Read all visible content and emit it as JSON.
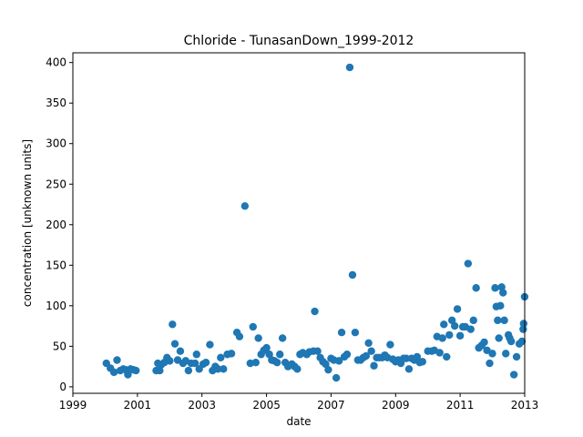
{
  "chart_data": {
    "type": "scatter",
    "title": "Chloride - TunasanDown_1999-2012",
    "xlabel": "date",
    "ylabel": "concentration [unknown units]",
    "xlim": [
      "1999-01-01",
      "2013-01-01"
    ],
    "ylim": [
      -8,
      412
    ],
    "x_ticks": [
      "1999",
      "2001",
      "2003",
      "2005",
      "2007",
      "2009",
      "2011",
      "2013"
    ],
    "y_ticks": [
      0,
      50,
      100,
      150,
      200,
      250,
      300,
      350,
      400
    ],
    "grid": false,
    "marker_color": "#1f77b4",
    "series": [
      {
        "points": [
          [
            "2000-01-15",
            29
          ],
          [
            "2000-03-01",
            23
          ],
          [
            "2000-04-10",
            18
          ],
          [
            "2000-05-15",
            33
          ],
          [
            "2000-06-20",
            20
          ],
          [
            "2000-07-25",
            22
          ],
          [
            "2000-08-20",
            21
          ],
          [
            "2000-09-15",
            15
          ],
          [
            "2000-10-15",
            22
          ],
          [
            "2000-11-15",
            21
          ],
          [
            "2000-12-15",
            20
          ],
          [
            "2001-08-01",
            20
          ],
          [
            "2001-08-20",
            29
          ],
          [
            "2001-09-10",
            20
          ],
          [
            "2001-09-25",
            27
          ],
          [
            "2001-11-01",
            30
          ],
          [
            "2001-12-01",
            36
          ],
          [
            "2002-01-01",
            32
          ],
          [
            "2002-02-01",
            77
          ],
          [
            "2002-03-01",
            53
          ],
          [
            "2002-04-01",
            33
          ],
          [
            "2002-05-01",
            44
          ],
          [
            "2002-06-01",
            29
          ],
          [
            "2002-07-01",
            32
          ],
          [
            "2002-08-01",
            20
          ],
          [
            "2002-09-01",
            29
          ],
          [
            "2002-10-15",
            29
          ],
          [
            "2002-11-01",
            40
          ],
          [
            "2002-12-01",
            22
          ],
          [
            "2003-01-15",
            28
          ],
          [
            "2003-02-15",
            30
          ],
          [
            "2003-04-01",
            52
          ],
          [
            "2003-05-01",
            20
          ],
          [
            "2003-06-01",
            25
          ],
          [
            "2003-07-01",
            22
          ],
          [
            "2003-08-01",
            36
          ],
          [
            "2003-09-01",
            22
          ],
          [
            "2003-10-15",
            40
          ],
          [
            "2003-12-01",
            41
          ],
          [
            "2004-02-01",
            67
          ],
          [
            "2004-03-01",
            62
          ],
          [
            "2004-05-01",
            223
          ],
          [
            "2004-07-01",
            29
          ],
          [
            "2004-08-01",
            74
          ],
          [
            "2004-09-01",
            30
          ],
          [
            "2004-10-01",
            60
          ],
          [
            "2004-11-01",
            40
          ],
          [
            "2004-12-01",
            45
          ],
          [
            "2005-01-01",
            48
          ],
          [
            "2005-02-01",
            40
          ],
          [
            "2005-03-01",
            33
          ],
          [
            "2005-04-01",
            32
          ],
          [
            "2005-05-01",
            30
          ],
          [
            "2005-06-01",
            40
          ],
          [
            "2005-07-01",
            60
          ],
          [
            "2005-08-01",
            30
          ],
          [
            "2005-09-01",
            25
          ],
          [
            "2005-10-15",
            28
          ],
          [
            "2005-11-15",
            25
          ],
          [
            "2005-12-15",
            22
          ],
          [
            "2006-01-15",
            40
          ],
          [
            "2006-02-15",
            42
          ],
          [
            "2006-04-01",
            40
          ],
          [
            "2006-05-01",
            43
          ],
          [
            "2006-06-15",
            44
          ],
          [
            "2006-07-01",
            93
          ],
          [
            "2006-08-01",
            44
          ],
          [
            "2006-09-01",
            36
          ],
          [
            "2006-10-01",
            31
          ],
          [
            "2006-11-01",
            28
          ],
          [
            "2006-12-01",
            21
          ],
          [
            "2007-01-01",
            35
          ],
          [
            "2007-02-01",
            33
          ],
          [
            "2007-03-01",
            11
          ],
          [
            "2007-04-01",
            32
          ],
          [
            "2007-05-01",
            67
          ],
          [
            "2007-06-01",
            37
          ],
          [
            "2007-07-01",
            40
          ],
          [
            "2007-08-01",
            394
          ],
          [
            "2007-09-01",
            138
          ],
          [
            "2007-10-01",
            67
          ],
          [
            "2007-11-01",
            33
          ],
          [
            "2007-12-01",
            33
          ],
          [
            "2008-01-01",
            36
          ],
          [
            "2008-02-01",
            38
          ],
          [
            "2008-03-01",
            54
          ],
          [
            "2008-04-01",
            44
          ],
          [
            "2008-05-01",
            26
          ],
          [
            "2008-06-01",
            36
          ],
          [
            "2008-07-01",
            36
          ],
          [
            "2008-08-01",
            36
          ],
          [
            "2008-09-01",
            39
          ],
          [
            "2008-10-01",
            36
          ],
          [
            "2008-11-01",
            52
          ],
          [
            "2008-12-01",
            34
          ],
          [
            "2009-01-01",
            31
          ],
          [
            "2009-02-01",
            33
          ],
          [
            "2009-03-01",
            29
          ],
          [
            "2009-04-01",
            35
          ],
          [
            "2009-05-01",
            35
          ],
          [
            "2009-06-01",
            22
          ],
          [
            "2009-07-01",
            35
          ],
          [
            "2009-08-01",
            33
          ],
          [
            "2009-09-01",
            37
          ],
          [
            "2009-10-01",
            30
          ],
          [
            "2009-11-01",
            31
          ],
          [
            "2010-01-01",
            44
          ],
          [
            "2010-02-15",
            44
          ],
          [
            "2010-03-15",
            45
          ],
          [
            "2010-04-15",
            62
          ],
          [
            "2010-05-15",
            42
          ],
          [
            "2010-06-15",
            60
          ],
          [
            "2010-07-01",
            77
          ],
          [
            "2010-08-01",
            37
          ],
          [
            "2010-09-01",
            64
          ],
          [
            "2010-10-01",
            82
          ],
          [
            "2010-11-01",
            75
          ],
          [
            "2010-12-01",
            96
          ],
          [
            "2011-01-01",
            63
          ],
          [
            "2011-02-01",
            74
          ],
          [
            "2011-03-01",
            74
          ],
          [
            "2011-04-01",
            152
          ],
          [
            "2011-05-01",
            71
          ],
          [
            "2011-06-01",
            82
          ],
          [
            "2011-07-01",
            122
          ],
          [
            "2011-08-01",
            48
          ],
          [
            "2011-09-01",
            51
          ],
          [
            "2011-10-01",
            55
          ],
          [
            "2011-11-01",
            45
          ],
          [
            "2011-12-01",
            29
          ],
          [
            "2012-01-01",
            41
          ],
          [
            "2012-02-01",
            122
          ],
          [
            "2012-02-15",
            99
          ],
          [
            "2012-03-01",
            82
          ],
          [
            "2012-03-15",
            60
          ],
          [
            "2012-04-01",
            100
          ],
          [
            "2012-04-15",
            123
          ],
          [
            "2012-05-01",
            116
          ],
          [
            "2012-05-15",
            82
          ],
          [
            "2012-06-01",
            41
          ],
          [
            "2012-07-01",
            64
          ],
          [
            "2012-07-15",
            60
          ],
          [
            "2012-08-01",
            56
          ],
          [
            "2012-09-01",
            15
          ],
          [
            "2012-10-01",
            37
          ],
          [
            "2012-11-01",
            53
          ],
          [
            "2012-12-01",
            56
          ],
          [
            "2012-12-15",
            71
          ],
          [
            "2012-12-20",
            78
          ],
          [
            "2012-12-31",
            111
          ]
        ]
      }
    ]
  }
}
